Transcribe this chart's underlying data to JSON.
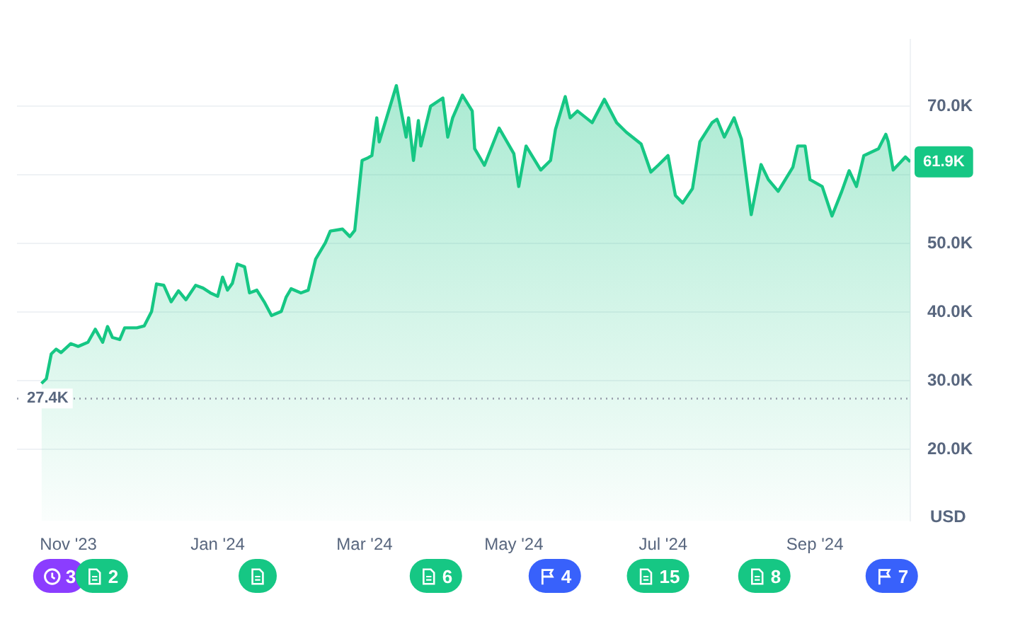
{
  "chart_data": {
    "type": "area",
    "ylabel": "USD",
    "x": [
      "2023-10-21",
      "2023-10-23",
      "2023-10-25",
      "2023-10-27",
      "2023-10-29",
      "2023-11-02",
      "2023-11-05",
      "2023-11-09",
      "2023-11-12",
      "2023-11-15",
      "2023-11-17",
      "2023-11-19",
      "2023-11-22",
      "2023-11-24",
      "2023-11-29",
      "2023-12-02",
      "2023-12-05",
      "2023-12-07",
      "2023-12-10",
      "2023-12-13",
      "2023-12-16",
      "2023-12-19",
      "2023-12-23",
      "2023-12-26",
      "2023-12-29",
      "2024-01-01",
      "2024-01-03",
      "2024-01-05",
      "2024-01-07",
      "2024-01-09",
      "2024-01-12",
      "2024-01-14",
      "2024-01-17",
      "2024-01-20",
      "2024-01-23",
      "2024-01-27",
      "2024-01-29",
      "2024-01-31",
      "2024-02-04",
      "2024-02-07",
      "2024-02-10",
      "2024-02-14",
      "2024-02-16",
      "2024-02-21",
      "2024-02-24",
      "2024-02-26",
      "2024-02-29",
      "2024-03-02",
      "2024-03-04",
      "2024-03-06",
      "2024-03-07",
      "2024-03-10",
      "2024-03-14",
      "2024-03-18",
      "2024-03-19",
      "2024-03-21",
      "2024-03-23",
      "2024-03-24",
      "2024-03-28",
      "2024-04-02",
      "2024-04-04",
      "2024-04-06",
      "2024-04-10",
      "2024-04-14",
      "2024-04-15",
      "2024-04-19",
      "2024-04-25",
      "2024-05-01",
      "2024-05-03",
      "2024-05-06",
      "2024-05-12",
      "2024-05-16",
      "2024-05-18",
      "2024-05-22",
      "2024-05-24",
      "2024-05-27",
      "2024-06-02",
      "2024-06-07",
      "2024-06-12",
      "2024-06-16",
      "2024-06-22",
      "2024-06-26",
      "2024-06-29",
      "2024-07-03",
      "2024-07-06",
      "2024-07-09",
      "2024-07-13",
      "2024-07-16",
      "2024-07-21",
      "2024-07-23",
      "2024-07-26",
      "2024-07-30",
      "2024-08-02",
      "2024-08-06",
      "2024-08-10",
      "2024-08-13",
      "2024-08-17",
      "2024-08-23",
      "2024-08-25",
      "2024-08-28",
      "2024-08-30",
      "2024-09-04",
      "2024-09-08",
      "2024-09-12",
      "2024-09-15",
      "2024-09-18",
      "2024-09-21",
      "2024-09-27",
      "2024-09-30",
      "2024-10-01",
      "2024-10-03",
      "2024-10-08",
      "2024-10-10"
    ],
    "series": [
      {
        "color": "#16c784",
        "values": [
          29600,
          30300,
          33900,
          34600,
          34100,
          35400,
          35000,
          35600,
          37500,
          35600,
          37900,
          36300,
          36000,
          37700,
          37700,
          38000,
          40100,
          44100,
          43900,
          41500,
          43100,
          41800,
          43900,
          43500,
          42800,
          42300,
          45100,
          43200,
          44200,
          47000,
          46600,
          42800,
          43200,
          41500,
          39500,
          40100,
          42200,
          43400,
          42800,
          43200,
          47700,
          50100,
          51800,
          52100,
          51000,
          51900,
          62100,
          62400,
          62800,
          68300,
          64800,
          68300,
          73000,
          65500,
          68300,
          62100,
          67900,
          64200,
          70000,
          71200,
          65500,
          68300,
          71600,
          69300,
          63800,
          61400,
          66800,
          63100,
          58300,
          64200,
          60700,
          62100,
          66600,
          71400,
          68300,
          69300,
          67600,
          71000,
          67600,
          66200,
          64500,
          60400,
          61400,
          62800,
          57000,
          55900,
          58000,
          64800,
          67600,
          68100,
          65500,
          68300,
          65200,
          54200,
          61500,
          59300,
          57600,
          61100,
          64200,
          64200,
          59300,
          58300,
          54000,
          57600,
          60600,
          58300,
          62800,
          63800,
          65900,
          64800,
          60700,
          62600,
          61900
        ],
        "value_labels": [
          null,
          null,
          null,
          null,
          null,
          null,
          null,
          null,
          null,
          null,
          null,
          null,
          null,
          null,
          null,
          null,
          null,
          null,
          null,
          null,
          null,
          null,
          null,
          null,
          null,
          null,
          null,
          null,
          null,
          null,
          null,
          null,
          null,
          null,
          null,
          null,
          null,
          null,
          null,
          null,
          null,
          null,
          null,
          null,
          null,
          null,
          null,
          null,
          null,
          null,
          null,
          null,
          null,
          null,
          null,
          null,
          null,
          null,
          null,
          null,
          null,
          null,
          null,
          null,
          null,
          null,
          null,
          null,
          null,
          null,
          null,
          null,
          null,
          null,
          null,
          null,
          null,
          null,
          null,
          null,
          null,
          null,
          null,
          null,
          null,
          null,
          null,
          null,
          null,
          null,
          null,
          null,
          null,
          null,
          null,
          null,
          null,
          null,
          null,
          null,
          null,
          null,
          null,
          null,
          null,
          null,
          null,
          null,
          null,
          null,
          null,
          null,
          "61.9K"
        ]
      }
    ],
    "xlim": [
      "2023-10-11",
      "2024-10-10"
    ],
    "xticks": [
      {
        "value": "2023-11-01",
        "label": "Nov '23"
      },
      {
        "value": "2024-01-01",
        "label": "Jan '24"
      },
      {
        "value": "2024-03-01",
        "label": "Mar '24"
      },
      {
        "value": "2024-05-01",
        "label": "May '24"
      },
      {
        "value": "2024-07-01",
        "label": "Jul '24"
      },
      {
        "value": "2024-09-01",
        "label": "Sep '24"
      }
    ],
    "ylim": [
      9600,
      79700
    ],
    "yticks": [
      {
        "value": 20000,
        "label": "20.0K"
      },
      {
        "value": 30000,
        "label": "30.0K"
      },
      {
        "value": 40000,
        "label": "40.0K"
      },
      {
        "value": 50000,
        "label": "50.0K"
      },
      {
        "value": 60000,
        "label": null
      },
      {
        "value": 70000,
        "label": "70.0K"
      }
    ],
    "grid": "y",
    "legend": false,
    "marker": "none",
    "line_style": "solid",
    "ref_lines": [
      {
        "axis": "y",
        "value": 27400,
        "label": "27.4K",
        "color": "#9aa0ad",
        "line_style": "dotted"
      }
    ],
    "annotations": [
      "3",
      "2",
      "6",
      "4",
      "15",
      "8",
      "7"
    ]
  }
}
